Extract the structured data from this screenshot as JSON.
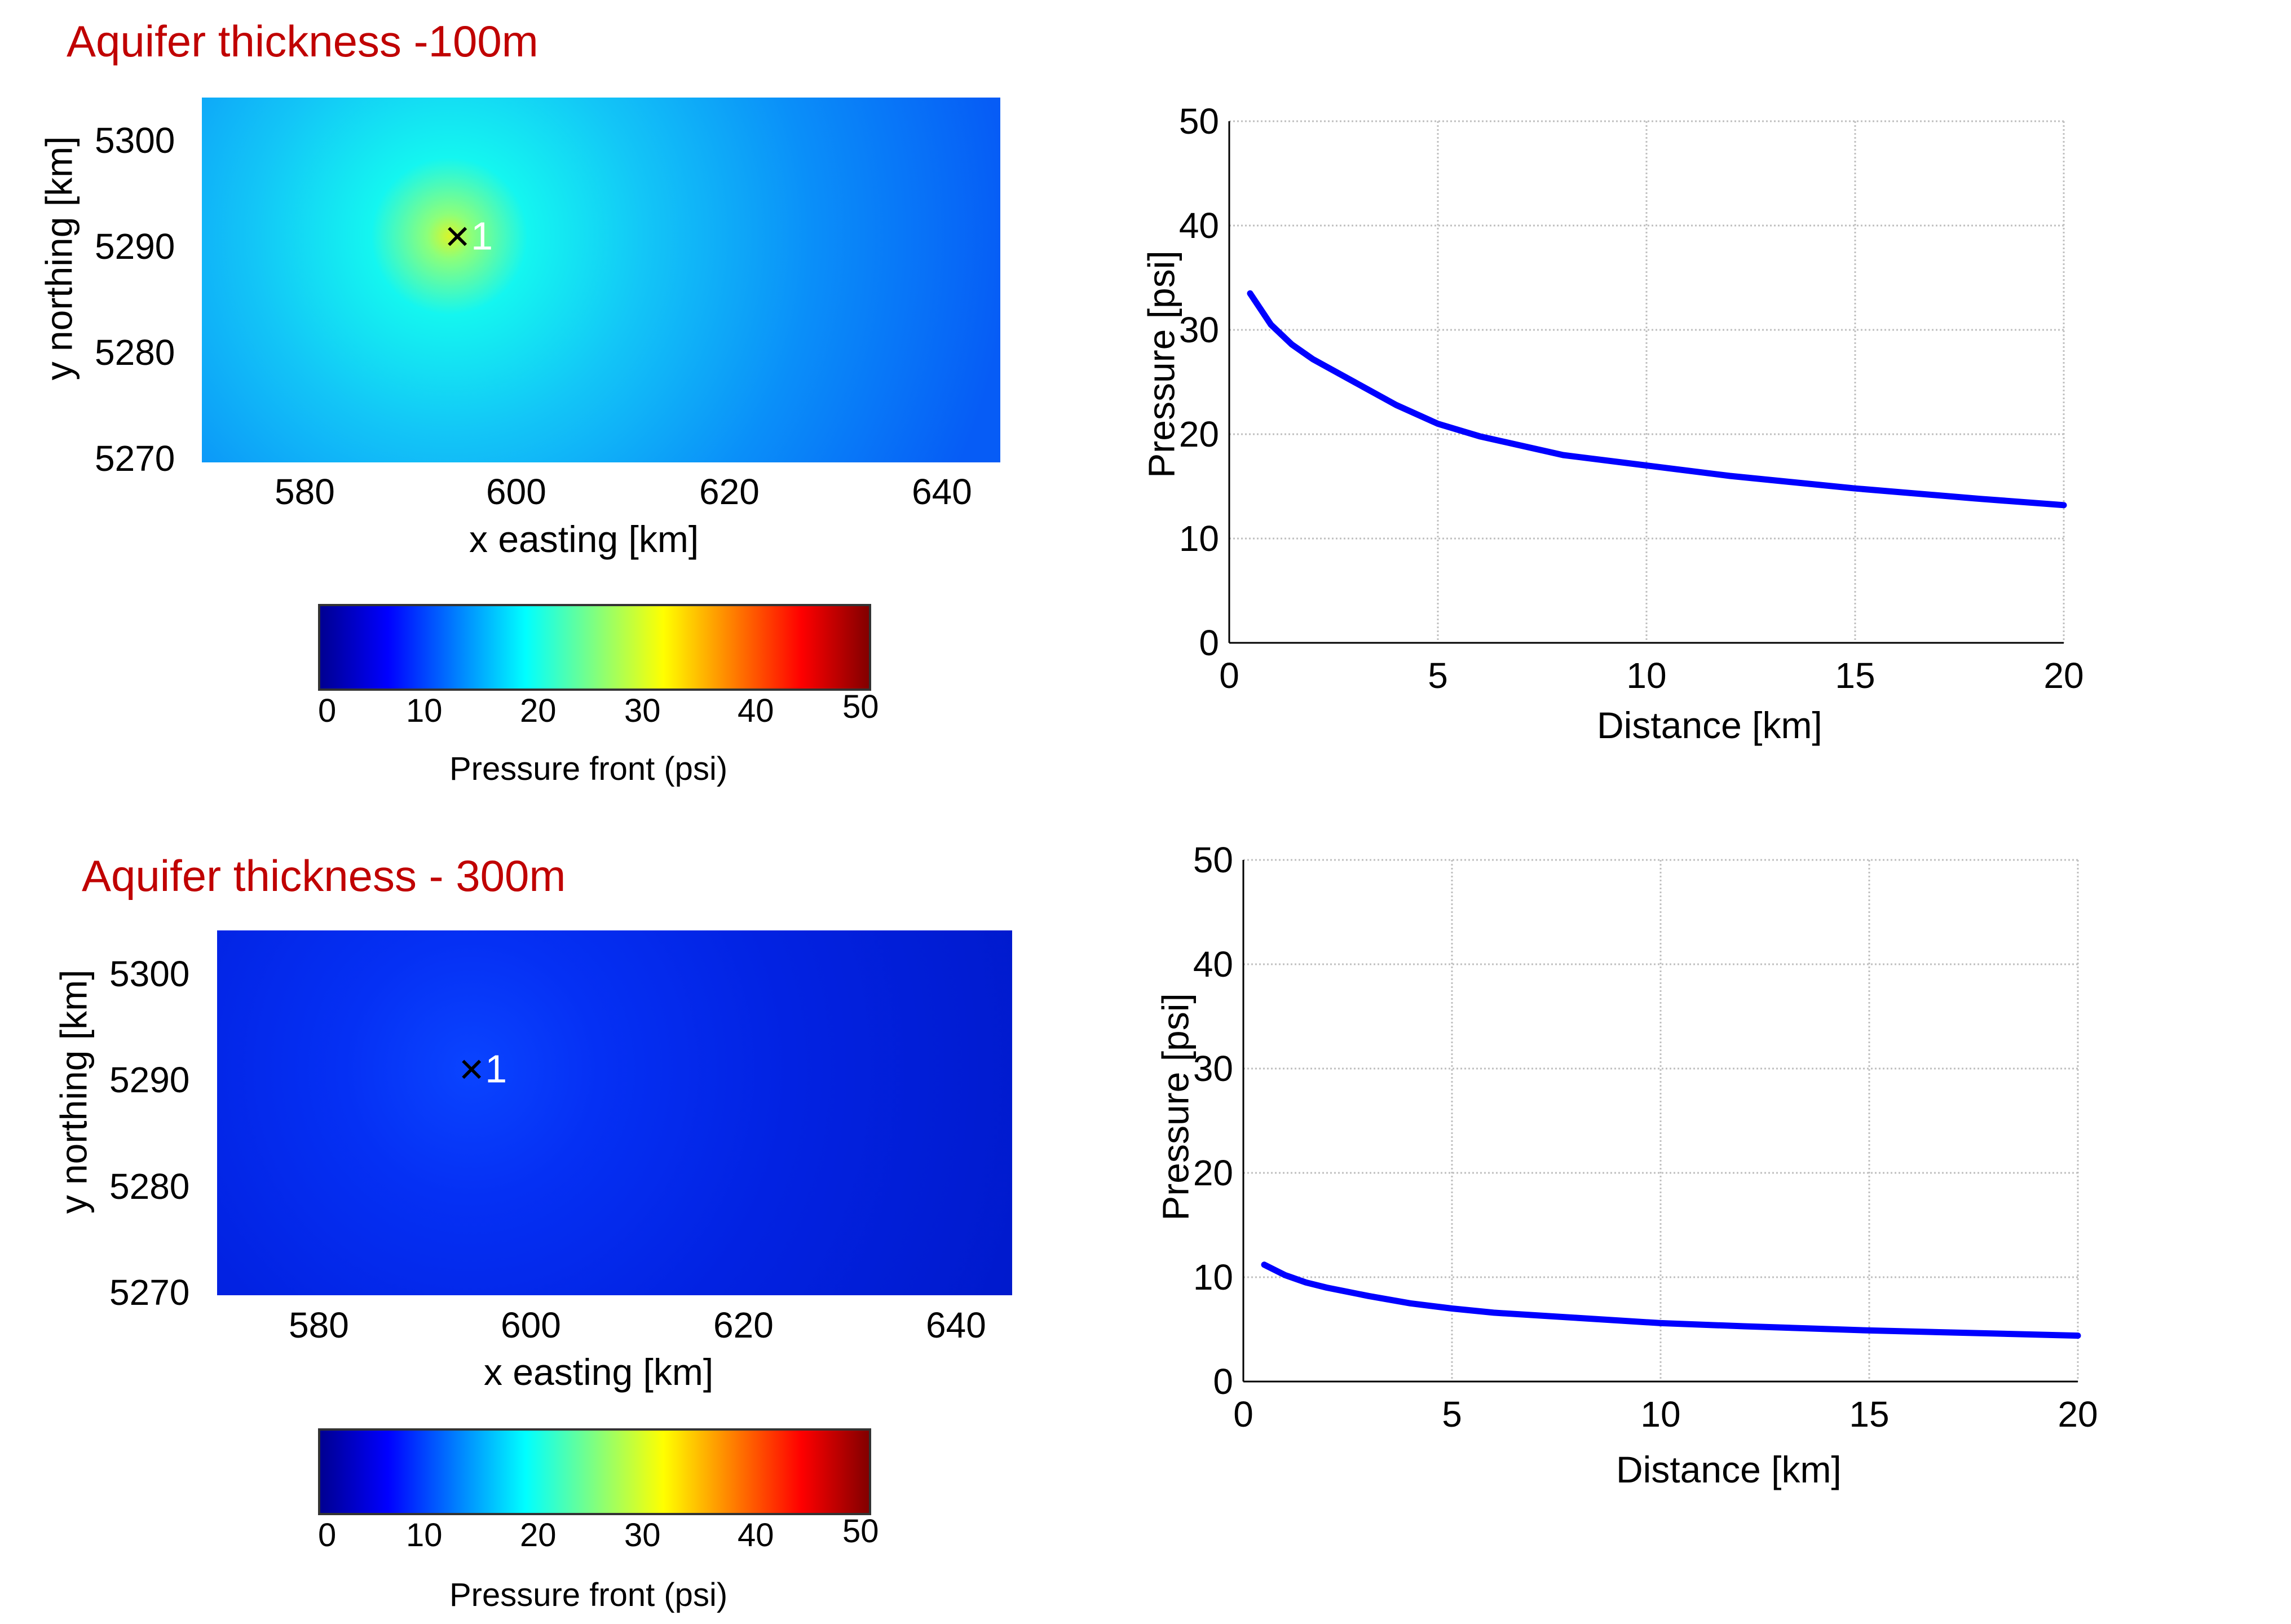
{
  "panels": [
    {
      "title": "Aquifer thickness -100m",
      "map": {
        "xlabel": "x easting [km]",
        "ylabel": "y northing [km]",
        "xticks": [
          "580",
          "600",
          "620",
          "640"
        ],
        "yticks": [
          "5300",
          "5290",
          "5280",
          "5270"
        ],
        "xlim": [
          570,
          645
        ],
        "ylim": [
          5270,
          5304
        ],
        "well": {
          "x": 594,
          "y": 5291,
          "label": "1"
        },
        "peak_pressure": 33,
        "background_pressure": 12
      },
      "colorbar": {
        "ticks": [
          "0",
          "10",
          "20",
          "30",
          "40",
          "50"
        ],
        "label": "Pressure front (psi)"
      }
    },
    {
      "title": "Aquifer thickness - 300m",
      "map": {
        "xlabel": "x easting [km]",
        "ylabel": "y northing [km]",
        "xticks": [
          "580",
          "600",
          "620",
          "640"
        ],
        "yticks": [
          "5300",
          "5290",
          "5280",
          "5270"
        ],
        "xlim": [
          570,
          645
        ],
        "ylim": [
          5270,
          5304
        ],
        "well": {
          "x": 594,
          "y": 5291,
          "label": "1"
        },
        "peak_pressure": 11,
        "background_pressure": 4
      },
      "colorbar": {
        "ticks": [
          "0",
          "10",
          "20",
          "30",
          "40",
          "50"
        ],
        "label": "Pressure front (psi)"
      }
    }
  ],
  "chart_data": [
    {
      "type": "line",
      "xlabel": "Distance [km]",
      "ylabel": "Pressure [psi]",
      "xlim": [
        0,
        20
      ],
      "ylim": [
        0,
        50
      ],
      "xticks": [
        "0",
        "5",
        "10",
        "15",
        "20"
      ],
      "yticks": [
        "0",
        "10",
        "20",
        "30",
        "40",
        "50"
      ],
      "grid": true,
      "series": [
        {
          "name": "Aquifer thickness -100m",
          "color": "#0000ff",
          "x": [
            0.5,
            1,
            1.5,
            2,
            3,
            4,
            5,
            6,
            8,
            10,
            12,
            15,
            18,
            20
          ],
          "y": [
            33.5,
            30.5,
            28.6,
            27.2,
            25.0,
            22.8,
            21.0,
            19.8,
            18.0,
            17.0,
            16.0,
            14.8,
            13.8,
            13.2
          ]
        }
      ]
    },
    {
      "type": "line",
      "xlabel": "Distance [km]",
      "ylabel": "Pressure [psi]",
      "xlim": [
        0,
        20
      ],
      "ylim": [
        0,
        50
      ],
      "xticks": [
        "0",
        "5",
        "10",
        "15",
        "20"
      ],
      "yticks": [
        "0",
        "10",
        "20",
        "30",
        "40",
        "50"
      ],
      "grid": true,
      "series": [
        {
          "name": "Aquifer thickness - 300m",
          "color": "#0000ff",
          "x": [
            0.5,
            1,
            1.5,
            2,
            3,
            4,
            5,
            6,
            8,
            10,
            12,
            15,
            18,
            20
          ],
          "y": [
            11.2,
            10.2,
            9.5,
            9.0,
            8.2,
            7.5,
            7.0,
            6.6,
            6.1,
            5.6,
            5.3,
            4.9,
            4.6,
            4.4
          ]
        }
      ]
    }
  ],
  "colors": {
    "title": "#c00000",
    "line": "#0000ff",
    "grid": "#bfbfbf"
  }
}
